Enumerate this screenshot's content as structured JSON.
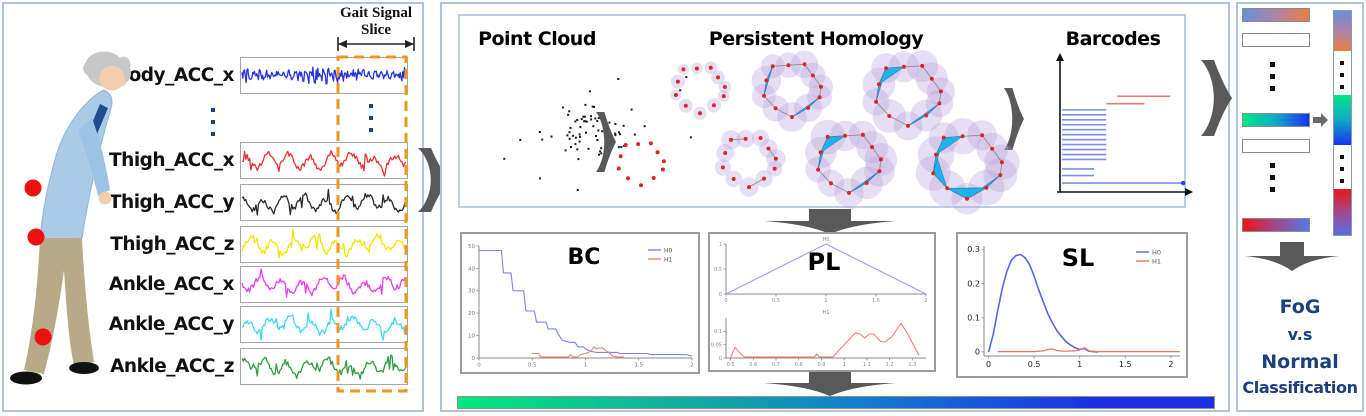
{
  "figure": {
    "left": {
      "slice_label_line1": "Gait Signal",
      "slice_label_line2": "Slice",
      "slice_color": "#f59422",
      "marker_color": "#ee1111",
      "signals": [
        {
          "label": "Body_ACC_x",
          "color": "#2433dd",
          "kind": "noise"
        },
        {
          "kind": "dots"
        },
        {
          "label": "Thigh_ACC_x",
          "color": "#ee3030",
          "kind": "gait"
        },
        {
          "label": "Thigh_ACC_y",
          "color": "#2a2a2a",
          "kind": "gait"
        },
        {
          "label": "Thigh_ACC_z",
          "color": "#f0e600",
          "kind": "gait"
        },
        {
          "label": "Ankle_ACC_x",
          "color": "#f03cf0",
          "kind": "gait"
        },
        {
          "label": "Ankle_ACC_y",
          "color": "#3fd9ec",
          "kind": "gait"
        },
        {
          "label": "Ankle_ACC_z",
          "color": "#2f9e42",
          "kind": "gait"
        }
      ]
    },
    "middle": {
      "point_cloud_title": "Point Cloud",
      "homology_title": "Persistent Homology",
      "barcodes_title": "Barcodes",
      "point_color": "#e02525",
      "ball_color": "#b49ad8",
      "simplex_color": "#1db4ea",
      "gradient_bar": [
        "#00e87e",
        "#0fae9f",
        "#1379cf",
        "#1b2fe6"
      ]
    },
    "right": {
      "labels": [
        "FoG",
        "v.s",
        "Normal",
        "Classification"
      ],
      "text_color": "#1a4080",
      "feature_bars": [
        {
          "kind": "grad",
          "colors": [
            "#6b8fd8",
            "#b083a8",
            "#ea7f45"
          ]
        },
        {
          "kind": "empty"
        },
        {
          "kind": "dots"
        },
        {
          "kind": "grad",
          "colors": [
            "#00e888",
            "#12a9c4",
            "#1433f0"
          ]
        },
        {
          "kind": "empty"
        },
        {
          "kind": "dots"
        },
        {
          "kind": "grad",
          "colors": [
            "#ee1414",
            "#a04890",
            "#5577e8"
          ]
        }
      ],
      "colorbar_segments": [
        {
          "kind": "grad",
          "colors": [
            "#6b8fd8",
            "#b083a8",
            "#ea7f45"
          ]
        },
        {
          "kind": "dots"
        },
        {
          "kind": "grad",
          "colors": [
            "#00e888",
            "#12a9c4",
            "#1433f0"
          ]
        },
        {
          "kind": "dots"
        },
        {
          "kind": "grad",
          "colors": [
            "#e81818",
            "#a04890",
            "#5a6ee0"
          ]
        }
      ]
    }
  },
  "chart_data": [
    {
      "id": "bc",
      "type": "line",
      "title": "BC",
      "xlim": [
        0,
        2
      ],
      "ylim": [
        0,
        50
      ],
      "xticks": [
        0,
        0.5,
        1,
        1.5,
        2
      ],
      "yticks": [
        0,
        10,
        20,
        30,
        40,
        50
      ],
      "legend": [
        "H0",
        "H1"
      ],
      "legend_position": "top-right",
      "grid": false,
      "series": [
        {
          "name": "H0",
          "color": "#7b86e8",
          "points": [
            [
              0,
              48
            ],
            [
              0.21,
              48
            ],
            [
              0.23,
              38
            ],
            [
              0.3,
              38
            ],
            [
              0.32,
              30
            ],
            [
              0.42,
              30
            ],
            [
              0.44,
              21
            ],
            [
              0.52,
              21
            ],
            [
              0.54,
              16
            ],
            [
              0.63,
              16
            ],
            [
              0.65,
              13
            ],
            [
              0.72,
              13
            ],
            [
              0.74,
              11
            ],
            [
              0.78,
              8
            ],
            [
              0.85,
              7
            ],
            [
              0.9,
              7
            ],
            [
              0.93,
              5
            ],
            [
              0.98,
              5
            ],
            [
              1,
              4
            ],
            [
              1.05,
              3
            ],
            [
              1.1,
              2.5
            ],
            [
              1.3,
              2.5
            ],
            [
              1.32,
              2
            ],
            [
              1.58,
              2
            ],
            [
              1.62,
              1.5
            ],
            [
              1.95,
              1.5
            ],
            [
              2,
              0.8
            ]
          ]
        },
        {
          "name": "H1",
          "color": "#f08070",
          "points": [
            [
              0.5,
              2
            ],
            [
              0.56,
              2
            ],
            [
              0.58,
              0.5
            ],
            [
              0.84,
              0.5
            ],
            [
              0.86,
              1.5
            ],
            [
              0.88,
              0.5
            ],
            [
              0.93,
              0.5
            ],
            [
              0.95,
              1.5
            ],
            [
              1,
              2
            ],
            [
              1.05,
              3
            ],
            [
              1.08,
              5
            ],
            [
              1.1,
              4
            ],
            [
              1.13,
              4.5
            ],
            [
              1.16,
              4.5
            ],
            [
              1.2,
              3
            ],
            [
              1.22,
              2.5
            ],
            [
              1.25,
              1
            ],
            [
              1.3,
              0.5
            ],
            [
              1.36,
              0.5
            ]
          ]
        }
      ]
    },
    {
      "id": "pl",
      "type": "line",
      "title": "PL",
      "subplots": [
        {
          "name": "H0",
          "xlim": [
            0,
            2
          ],
          "ylim": [
            0,
            1
          ],
          "xticks": [
            0,
            0.5,
            1,
            1.5,
            2
          ],
          "yticks": [
            0,
            0.5,
            1
          ],
          "color": "#9aa4ee",
          "points": [
            [
              0,
              0
            ],
            [
              1,
              1
            ],
            [
              2,
              0
            ]
          ]
        },
        {
          "name": "H1",
          "xlim": [
            0.48,
            1.36
          ],
          "ylim": [
            0,
            0.15
          ],
          "xticks": [
            0.5,
            0.6,
            0.7,
            0.8,
            0.9,
            1,
            1.1,
            1.2,
            1.3
          ],
          "yticks": [
            0,
            0.05,
            0.1
          ],
          "color": "#f08070",
          "points": [
            [
              0.5,
              0.002
            ],
            [
              0.52,
              0.04
            ],
            [
              0.54,
              0.02
            ],
            [
              0.56,
              0.004
            ],
            [
              0.6,
              0.004
            ],
            [
              0.7,
              0.004
            ],
            [
              0.8,
              0.004
            ],
            [
              0.87,
              0.004
            ],
            [
              0.88,
              0.015
            ],
            [
              0.89,
              0.004
            ],
            [
              0.95,
              0.004
            ],
            [
              1,
              0.05
            ],
            [
              1.05,
              0.095
            ],
            [
              1.07,
              0.09
            ],
            [
              1.09,
              0.075
            ],
            [
              1.11,
              0.09
            ],
            [
              1.13,
              0.09
            ],
            [
              1.16,
              0.062
            ],
            [
              1.18,
              0.06
            ],
            [
              1.21,
              0.08
            ],
            [
              1.25,
              0.13
            ],
            [
              1.28,
              0.09
            ],
            [
              1.31,
              0.04
            ],
            [
              1.33,
              0.01
            ]
          ]
        }
      ]
    },
    {
      "id": "sl",
      "type": "line",
      "title": "SL",
      "xlim": [
        -0.05,
        2.1
      ],
      "ylim": [
        -0.012,
        0.31
      ],
      "xticks": [
        0,
        0.5,
        1,
        1.5,
        2
      ],
      "yticks": [
        0,
        0.1,
        0.2,
        0.3
      ],
      "legend": [
        "H0",
        "H1"
      ],
      "legend_position": "top-right",
      "grid": false,
      "series": [
        {
          "name": "H0",
          "color": "#5866e0",
          "points": [
            [
              0,
              0
            ],
            [
              0.05,
              0.05
            ],
            [
              0.1,
              0.12
            ],
            [
              0.15,
              0.185
            ],
            [
              0.2,
              0.235
            ],
            [
              0.25,
              0.268
            ],
            [
              0.3,
              0.282
            ],
            [
              0.35,
              0.285
            ],
            [
              0.4,
              0.276
            ],
            [
              0.45,
              0.255
            ],
            [
              0.5,
              0.222
            ],
            [
              0.55,
              0.182
            ],
            [
              0.6,
              0.146
            ],
            [
              0.65,
              0.112
            ],
            [
              0.7,
              0.085
            ],
            [
              0.75,
              0.062
            ],
            [
              0.8,
              0.045
            ],
            [
              0.85,
              0.03
            ],
            [
              0.9,
              0.02
            ],
            [
              0.95,
              0.012
            ],
            [
              1,
              0.007
            ],
            [
              1.05,
              0.01
            ],
            [
              1.1,
              0.002
            ],
            [
              1.15,
              0.001
            ],
            [
              1.2,
              0
            ]
          ]
        },
        {
          "name": "H1",
          "color": "#f07060",
          "points": [
            [
              0.1,
              0.001
            ],
            [
              0.3,
              0.001
            ],
            [
              0.5,
              0.001
            ],
            [
              0.6,
              0.003
            ],
            [
              0.65,
              0.007
            ],
            [
              0.7,
              0.009
            ],
            [
              0.75,
              0.004
            ],
            [
              0.8,
              0.002
            ],
            [
              0.95,
              0.003
            ],
            [
              1,
              0.006
            ],
            [
              1.05,
              0.012
            ],
            [
              1.08,
              0.008
            ],
            [
              1.1,
              0.003
            ],
            [
              1.2,
              0.001
            ],
            [
              1.5,
              0.001
            ],
            [
              2,
              0.001
            ],
            [
              2.1,
              0.001
            ]
          ]
        }
      ]
    },
    {
      "id": "barcodes",
      "type": "barcode",
      "title": "Barcodes",
      "colors": {
        "H0": "#7b8fe8",
        "H1": "#e87878"
      },
      "bars": [
        {
          "x0": 0.45,
          "x1": 0.88,
          "y": 0.26,
          "c": "H1"
        },
        {
          "x0": 0.36,
          "x1": 0.67,
          "y": 0.32,
          "c": "H1"
        },
        {
          "x0": 0,
          "x1": 0.36,
          "y": 0.37,
          "c": "H0"
        },
        {
          "x0": 0,
          "x1": 0.36,
          "y": 0.41,
          "c": "H0"
        },
        {
          "x0": 0,
          "x1": 0.36,
          "y": 0.45,
          "c": "H0"
        },
        {
          "x0": 0,
          "x1": 0.36,
          "y": 0.49,
          "c": "H0"
        },
        {
          "x0": 0,
          "x1": 0.36,
          "y": 0.53,
          "c": "H0"
        },
        {
          "x0": 0,
          "x1": 0.36,
          "y": 0.57,
          "c": "H0"
        },
        {
          "x0": 0,
          "x1": 0.36,
          "y": 0.61,
          "c": "H0"
        },
        {
          "x0": 0,
          "x1": 0.36,
          "y": 0.65,
          "c": "H0"
        },
        {
          "x0": 0,
          "x1": 0.36,
          "y": 0.69,
          "c": "H0"
        },
        {
          "x0": 0,
          "x1": 0.36,
          "y": 0.73,
          "c": "H0"
        },
        {
          "x0": 0,
          "x1": 0.36,
          "y": 0.77,
          "c": "H0"
        },
        {
          "x0": 0,
          "x1": 0.26,
          "y": 0.846,
          "c": "H0"
        },
        {
          "x0": 0,
          "x1": 0.26,
          "y": 0.9,
          "c": "H0"
        },
        {
          "x0": 0,
          "x1": 0.985,
          "y": 0.96,
          "c": "H0",
          "endpoint_dot": true
        }
      ]
    }
  ]
}
